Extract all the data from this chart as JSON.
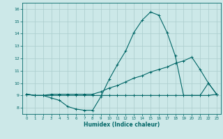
{
  "xlabel": "Humidex (Indice chaleur)",
  "xlim": [
    -0.5,
    23.5
  ],
  "ylim": [
    7.5,
    16.5
  ],
  "xticks": [
    0,
    1,
    2,
    3,
    4,
    5,
    6,
    7,
    8,
    9,
    10,
    11,
    12,
    13,
    14,
    15,
    16,
    17,
    18,
    19,
    20,
    21,
    22,
    23
  ],
  "yticks": [
    8,
    9,
    10,
    11,
    12,
    13,
    14,
    15,
    16
  ],
  "bg_color": "#cce8e8",
  "grid_color": "#aacccc",
  "line_color": "#006666",
  "line1_x": [
    0,
    1,
    2,
    3,
    4,
    5,
    6,
    7,
    8,
    9,
    10,
    11,
    12,
    13,
    14,
    15,
    16,
    17,
    18,
    19,
    20,
    21,
    22,
    23
  ],
  "line1_y": [
    9.1,
    9.0,
    9.0,
    8.8,
    8.6,
    8.1,
    7.9,
    7.8,
    7.8,
    8.9,
    10.3,
    11.5,
    12.6,
    14.1,
    15.1,
    15.75,
    15.5,
    14.1,
    12.2,
    9.0,
    9.0,
    9.0,
    10.0,
    9.1
  ],
  "line2_x": [
    0,
    1,
    2,
    3,
    4,
    5,
    6,
    7,
    8,
    9,
    10,
    11,
    12,
    13,
    14,
    15,
    16,
    17,
    18,
    19,
    20,
    21,
    22,
    23
  ],
  "line2_y": [
    9.1,
    9.0,
    9.0,
    9.1,
    9.1,
    9.1,
    9.1,
    9.1,
    9.1,
    9.3,
    9.6,
    9.8,
    10.1,
    10.4,
    10.6,
    10.9,
    11.1,
    11.3,
    11.6,
    11.8,
    12.1,
    11.1,
    10.0,
    9.1
  ],
  "line3_x": [
    0,
    1,
    2,
    3,
    4,
    5,
    6,
    7,
    8,
    9,
    10,
    11,
    12,
    13,
    14,
    15,
    16,
    17,
    18,
    19,
    20,
    21,
    22,
    23
  ],
  "line3_y": [
    9.1,
    9.0,
    9.0,
    9.0,
    9.0,
    9.0,
    9.0,
    9.0,
    9.0,
    9.0,
    9.0,
    9.0,
    9.0,
    9.0,
    9.0,
    9.0,
    9.0,
    9.0,
    9.0,
    9.0,
    9.0,
    9.0,
    9.0,
    9.1
  ],
  "marker": "+",
  "markersize": 2.5,
  "linewidth": 0.8
}
